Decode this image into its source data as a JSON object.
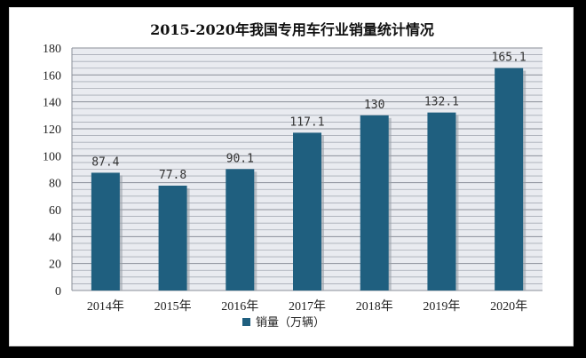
{
  "chart_data": {
    "type": "bar",
    "title": "2015-2020年我国专用车行业销量统计情况",
    "categories": [
      "2014年",
      "2015年",
      "2016年",
      "2017年",
      "2018年",
      "2019年",
      "2020年"
    ],
    "series": [
      {
        "name": "销量（万辆）",
        "values": [
          87.4,
          77.8,
          90.1,
          117.1,
          130,
          132.1,
          165.1
        ],
        "labels": [
          "87.4",
          "77.8",
          "90.1",
          "117.1",
          "130",
          "132.1",
          "165.1"
        ],
        "color": "#1f5f7f"
      }
    ],
    "ylim": [
      0,
      180
    ],
    "yticks": [
      0,
      20,
      40,
      60,
      80,
      100,
      120,
      140,
      160,
      180
    ],
    "grid": true,
    "legend_position": "bottom"
  }
}
